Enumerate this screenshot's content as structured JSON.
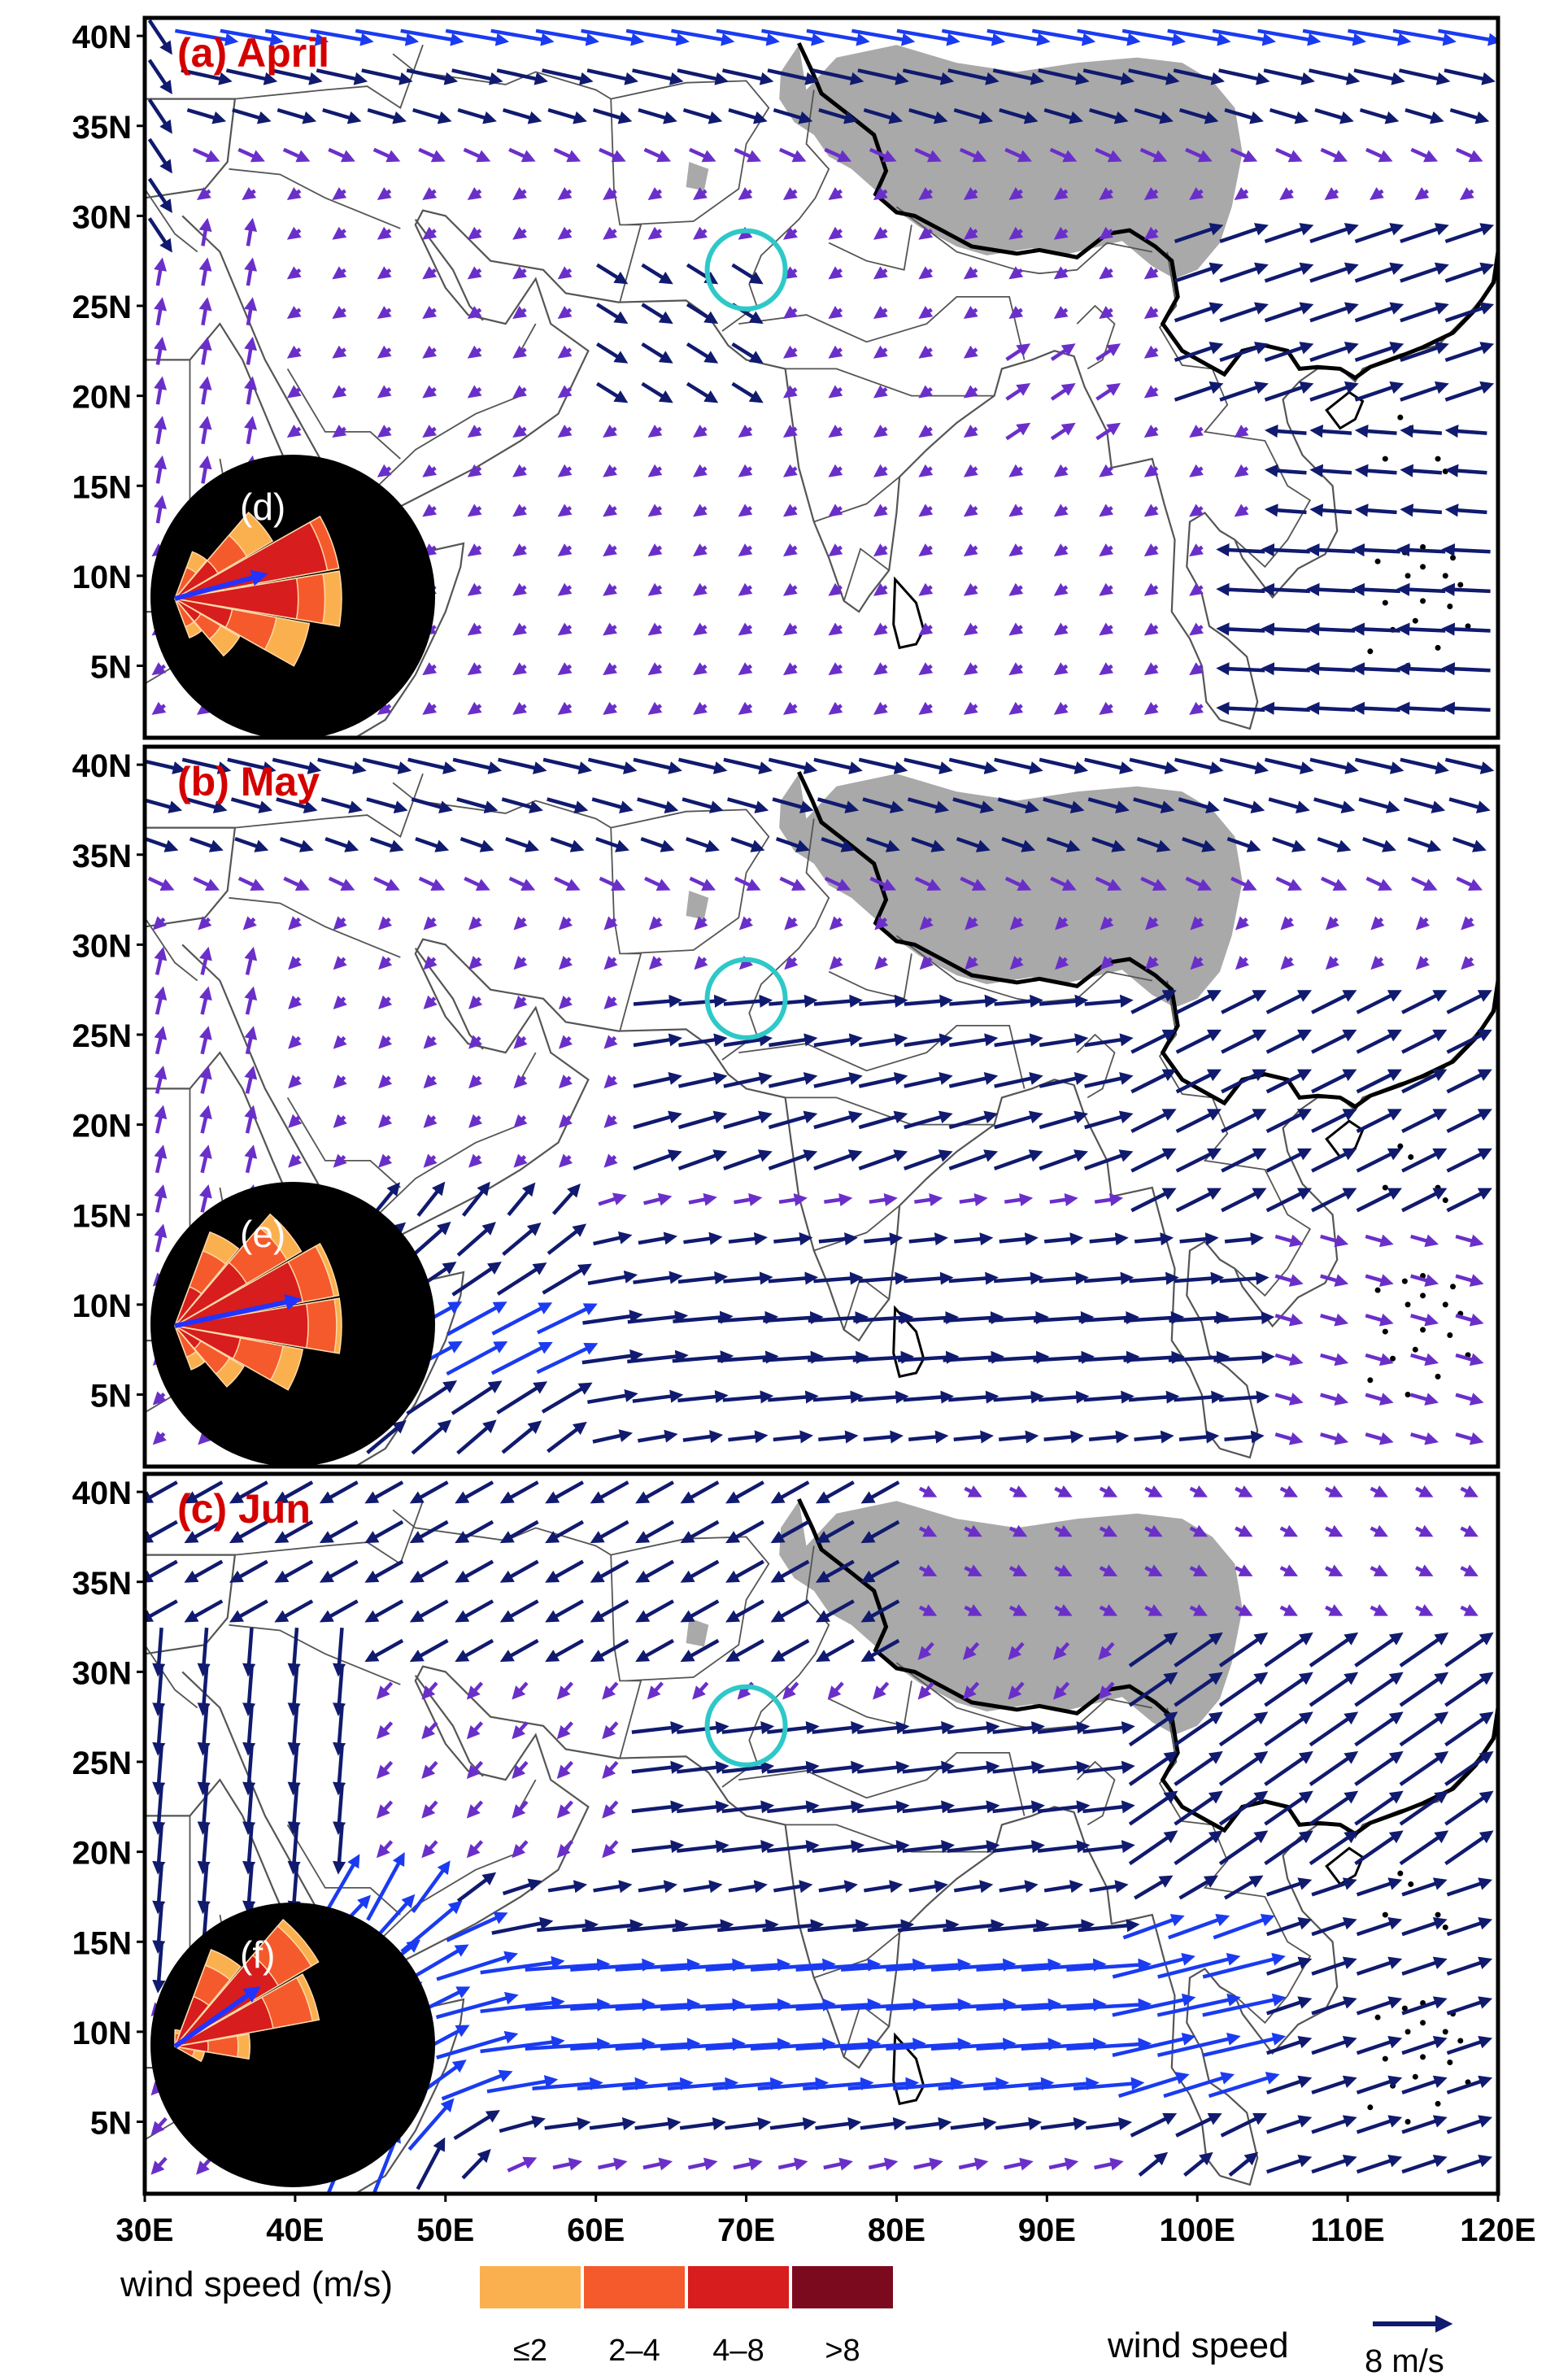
{
  "panels": [
    {
      "id": "a",
      "title": "(a) April",
      "inset_label": "(d)",
      "rose_mean": {
        "dir_deg": 75,
        "len": 0.55
      },
      "rose_petals": [
        [
          70,
          1,
          1,
          0.93,
          0
        ],
        [
          90,
          1,
          0.9,
          0.74,
          0
        ],
        [
          110,
          0.82,
          0.62,
          0.35,
          0
        ],
        [
          50,
          0.68,
          0.5,
          0.3,
          0
        ],
        [
          130,
          0.45,
          0.32,
          0.18,
          0
        ],
        [
          30,
          0.3,
          0.2,
          0,
          0
        ],
        [
          150,
          0.25,
          0.18,
          0,
          0
        ]
      ]
    },
    {
      "id": "b",
      "title": "(b) May",
      "inset_label": "(e)",
      "rose_mean": {
        "dir_deg": 78,
        "len": 0.75
      },
      "rose_petals": [
        [
          70,
          1,
          0.97,
          0.78,
          0
        ],
        [
          90,
          1,
          0.97,
          0.8,
          0
        ],
        [
          50,
          0.88,
          0.78,
          0.5,
          0
        ],
        [
          110,
          0.78,
          0.66,
          0.4,
          0
        ],
        [
          30,
          0.6,
          0.48,
          0.25,
          0
        ],
        [
          130,
          0.48,
          0.38,
          0.18,
          0
        ],
        [
          150,
          0.28,
          0.2,
          0,
          0
        ]
      ]
    },
    {
      "id": "c",
      "title": "(c) Jun",
      "inset_label": "(f)",
      "rose_mean": {
        "dir_deg": 55,
        "len": 0.6
      },
      "rose_petals": [
        [
          50,
          1,
          0.95,
          0.72,
          0
        ],
        [
          70,
          0.88,
          0.84,
          0.6,
          0
        ],
        [
          30,
          0.62,
          0.52,
          0.32,
          0
        ],
        [
          90,
          0.45,
          0.38,
          0.2,
          0
        ],
        [
          110,
          0.18,
          0.12,
          0,
          0
        ],
        [
          10,
          0.1,
          0.08,
          0,
          0
        ]
      ]
    }
  ],
  "map": {
    "lon_range": [
      30,
      120
    ],
    "lat_range": [
      1,
      41
    ],
    "lat_ticks": [
      {
        "value": 40,
        "label": "40N"
      },
      {
        "value": 35,
        "label": "35N"
      },
      {
        "value": 30,
        "label": "30N"
      },
      {
        "value": 25,
        "label": "25N"
      },
      {
        "value": 20,
        "label": "20N"
      },
      {
        "value": 15,
        "label": "15N"
      },
      {
        "value": 10,
        "label": "10N"
      },
      {
        "value": 5,
        "label": "5N"
      }
    ],
    "lon_ticks": [
      {
        "value": 30,
        "label": "30E"
      },
      {
        "value": 40,
        "label": "40E"
      },
      {
        "value": 50,
        "label": "50E"
      },
      {
        "value": 60,
        "label": "60E"
      },
      {
        "value": 70,
        "label": "70E"
      },
      {
        "value": 80,
        "label": "80E"
      },
      {
        "value": 90,
        "label": "90E"
      },
      {
        "value": 100,
        "label": "100E"
      },
      {
        "value": 110,
        "label": "110E"
      },
      {
        "value": 120,
        "label": "120E"
      }
    ],
    "highlight_circle": {
      "lon": 70,
      "lat": 27
    },
    "colors": {
      "slow_vector": "#6a2fc9",
      "mid_vector": "#101a6e",
      "fast_vector": "#1a3bf0",
      "tibet_plateau": "#a9a9a9",
      "coastline": "#555555",
      "circle": "#2ec8c8",
      "panel_title": "#d40000",
      "inset_bg": "#000000",
      "mean_vector": "#2233ff"
    }
  },
  "legend": {
    "title": "wind speed (m/s)",
    "categories": [
      {
        "label": "≤2",
        "color": "#fbb04f"
      },
      {
        "label": "2–4",
        "color": "#f55a2c"
      },
      {
        "label": "4–8",
        "color": "#d71d1d"
      },
      {
        "label": ">8",
        "color": "#7c0a1e"
      }
    ]
  },
  "reference_vector": {
    "label": "wind speed",
    "value_label": "8 m/s",
    "speed_ms": 8
  }
}
